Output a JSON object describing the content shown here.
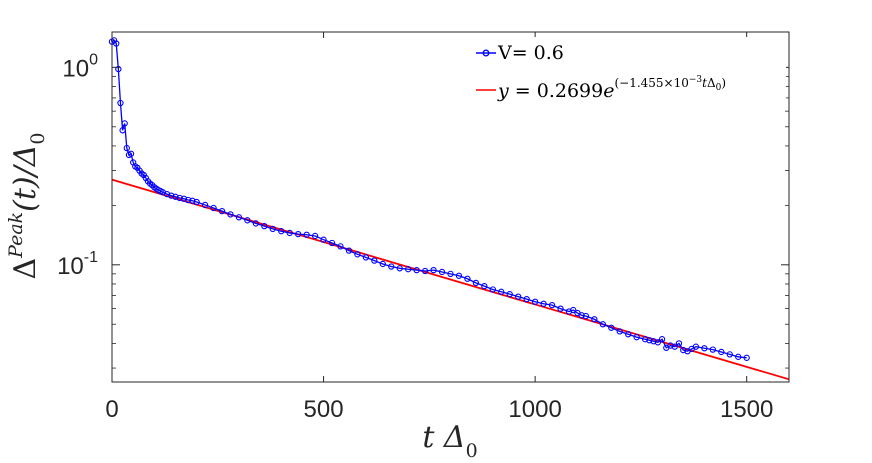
{
  "chart_data": {
    "type": "scatter",
    "xlabel": "t Δ",
    "xlabel_sub": "0",
    "ylabel": {
      "pre": "Δ",
      "sup": "Peak",
      "post": "(t)/Δ",
      "sub": "0"
    },
    "x_ticks": [
      {
        "value": 0,
        "label": "0"
      },
      {
        "value": 500,
        "label": "500"
      },
      {
        "value": 1000,
        "label": "1000"
      },
      {
        "value": 1500,
        "label": "1500"
      }
    ],
    "y_ticks": [
      {
        "value": 1.0,
        "base": "10",
        "exp": "0"
      },
      {
        "value": 0.1,
        "base": "10",
        "exp": "-1"
      }
    ],
    "xlim": [
      0,
      1600
    ],
    "ylim": [
      0.0255,
      1.51
    ],
    "yscale": "log",
    "grid": false,
    "legend_position": "top-right",
    "series": [
      {
        "name": "V= 0.6",
        "legend_label": "V= 0.6",
        "color": "#0000ff",
        "style": "line-with-circle-markers",
        "x": [
          0,
          5,
          10,
          15,
          20,
          25,
          30,
          35,
          40,
          45,
          50,
          55,
          60,
          65,
          70,
          75,
          80,
          85,
          90,
          95,
          100,
          105,
          110,
          115,
          120,
          130,
          140,
          150,
          160,
          170,
          180,
          190,
          200,
          220,
          240,
          260,
          280,
          300,
          320,
          340,
          360,
          380,
          400,
          420,
          440,
          460,
          480,
          500,
          520,
          540,
          560,
          580,
          600,
          620,
          640,
          660,
          680,
          700,
          720,
          740,
          760,
          780,
          800,
          820,
          840,
          860,
          880,
          900,
          920,
          940,
          960,
          980,
          1000,
          1020,
          1040,
          1060,
          1080,
          1090,
          1100,
          1110,
          1120,
          1140,
          1160,
          1180,
          1200,
          1220,
          1240,
          1260,
          1270,
          1280,
          1290,
          1300,
          1310,
          1320,
          1330,
          1340,
          1350,
          1360,
          1370,
          1380,
          1400,
          1420,
          1440,
          1460,
          1480,
          1500
        ],
        "y": [
          1.35,
          1.37,
          1.32,
          0.98,
          0.66,
          0.48,
          0.52,
          0.39,
          0.36,
          0.365,
          0.33,
          0.315,
          0.31,
          0.3,
          0.29,
          0.285,
          0.275,
          0.265,
          0.258,
          0.253,
          0.247,
          0.243,
          0.239,
          0.236,
          0.233,
          0.228,
          0.224,
          0.221,
          0.218,
          0.216,
          0.213,
          0.211,
          0.208,
          0.201,
          0.194,
          0.187,
          0.18,
          0.174,
          0.168,
          0.162,
          0.157,
          0.152,
          0.148,
          0.145,
          0.143,
          0.142,
          0.14,
          0.134,
          0.129,
          0.124,
          0.118,
          0.113,
          0.109,
          0.105,
          0.101,
          0.098,
          0.096,
          0.095,
          0.094,
          0.093,
          0.094,
          0.092,
          0.09,
          0.088,
          0.085,
          0.081,
          0.078,
          0.075,
          0.073,
          0.071,
          0.069,
          0.067,
          0.065,
          0.0635,
          0.0625,
          0.06,
          0.058,
          0.059,
          0.057,
          0.0555,
          0.055,
          0.053,
          0.05,
          0.048,
          0.046,
          0.0445,
          0.043,
          0.042,
          0.0415,
          0.041,
          0.0405,
          0.042,
          0.038,
          0.039,
          0.0385,
          0.04,
          0.037,
          0.0365,
          0.0375,
          0.0385,
          0.0378,
          0.0372,
          0.0362,
          0.0352,
          0.0342,
          0.0338
        ]
      },
      {
        "name": "y = 0.2699e^(-1.455×10^-3 tΔ0)",
        "color": "#ff0000",
        "style": "line",
        "fit": {
          "a": 0.2699,
          "b": -0.001455
        },
        "x_range": [
          0,
          1600
        ]
      }
    ],
    "legend": {
      "entry1": "V= 0.6",
      "entry2": {
        "y": "y",
        "eq": " = 0.2699",
        "e": "e",
        "exp_open": "(−1.455×10",
        "exp_sup": "−3",
        "exp_t": "t",
        "exp_delta": "Δ",
        "exp_sub": "0",
        "exp_close": ")"
      }
    }
  }
}
